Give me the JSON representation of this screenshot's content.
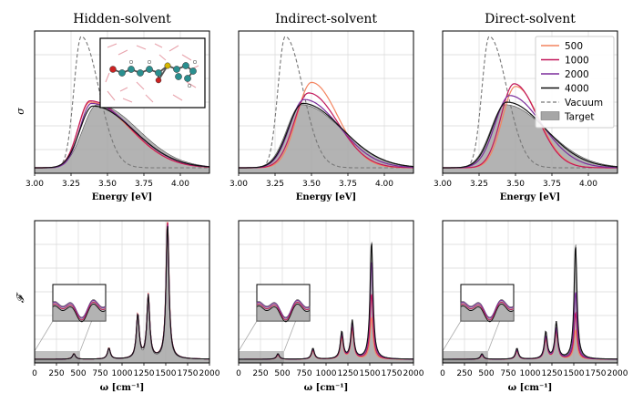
{
  "colors": {
    "s500": "#f4845f",
    "s1000": "#c2185b",
    "s2000": "#7b2d9c",
    "s4000": "#111111",
    "vacuum": "#777777",
    "target": "#a6a6a6"
  },
  "legend": {
    "items": [
      {
        "label": "500",
        "key": "s500"
      },
      {
        "label": "1000",
        "key": "s1000"
      },
      {
        "label": "2000",
        "key": "s2000"
      },
      {
        "label": "4000",
        "key": "s4000"
      },
      {
        "label": "Vacuum",
        "key": "vacuum"
      },
      {
        "label": "Target",
        "key": "target"
      }
    ]
  },
  "inset_image": {
    "description_icon": "molecule-icon"
  },
  "chart_data": [
    {
      "type": "line",
      "panel": "top-left",
      "title": "Hidden-solvent",
      "xlabel": "Energy [eV]",
      "ylabel": "σ",
      "xlim": [
        3.0,
        4.2
      ],
      "xticks": [
        "3.00",
        "3.25",
        "3.50",
        "3.75",
        "4.00"
      ],
      "series": [
        {
          "name": "Target",
          "peak": 0.48,
          "center": 3.43,
          "width_left": 0.1,
          "width_right": 0.28
        },
        {
          "name": "Vacuum",
          "peak": 1.0,
          "center": 3.32,
          "width_left": 0.05,
          "width_right": 0.12
        },
        {
          "name": "500",
          "peak": 0.5,
          "center": 3.38,
          "width_left": 0.08,
          "width_right": 0.27
        },
        {
          "name": "1000",
          "peak": 0.51,
          "center": 3.38,
          "width_left": 0.08,
          "width_right": 0.27
        },
        {
          "name": "2000",
          "peak": 0.49,
          "center": 3.39,
          "width_left": 0.08,
          "width_right": 0.28
        },
        {
          "name": "4000",
          "peak": 0.47,
          "center": 3.4,
          "width_left": 0.09,
          "width_right": 0.28
        }
      ]
    },
    {
      "type": "line",
      "panel": "top-middle",
      "title": "Indirect-solvent",
      "xlabel": "Energy [eV]",
      "ylabel": "",
      "xlim": [
        3.0,
        4.2
      ],
      "xticks": [
        "3.00",
        "3.25",
        "3.50",
        "3.75",
        "4.00"
      ],
      "series": [
        {
          "name": "Target",
          "peak": 0.48,
          "center": 3.43,
          "width_left": 0.1,
          "width_right": 0.28
        },
        {
          "name": "Vacuum",
          "peak": 1.0,
          "center": 3.32,
          "width_left": 0.05,
          "width_right": 0.12
        },
        {
          "name": "500",
          "peak": 0.65,
          "center": 3.5,
          "width_left": 0.1,
          "width_right": 0.18
        },
        {
          "name": "1000",
          "peak": 0.57,
          "center": 3.48,
          "width_left": 0.1,
          "width_right": 0.2
        },
        {
          "name": "2000",
          "peak": 0.52,
          "center": 3.45,
          "width_left": 0.1,
          "width_right": 0.24
        },
        {
          "name": "4000",
          "peak": 0.49,
          "center": 3.44,
          "width_left": 0.1,
          "width_right": 0.27
        }
      ]
    },
    {
      "type": "line",
      "panel": "top-right",
      "title": "Direct-solvent",
      "xlabel": "Energy [eV]",
      "ylabel": "",
      "xlim": [
        3.0,
        4.2
      ],
      "xticks": [
        "3.00",
        "3.25",
        "3.50",
        "3.75",
        "4.00"
      ],
      "series": [
        {
          "name": "Target",
          "peak": 0.48,
          "center": 3.43,
          "width_left": 0.1,
          "width_right": 0.28
        },
        {
          "name": "Vacuum",
          "peak": 1.0,
          "center": 3.32,
          "width_left": 0.05,
          "width_right": 0.12
        },
        {
          "name": "500",
          "peak": 0.62,
          "center": 3.5,
          "width_left": 0.09,
          "width_right": 0.16
        },
        {
          "name": "1000",
          "peak": 0.64,
          "center": 3.49,
          "width_left": 0.09,
          "width_right": 0.16
        },
        {
          "name": "2000",
          "peak": 0.55,
          "center": 3.46,
          "width_left": 0.1,
          "width_right": 0.22
        },
        {
          "name": "4000",
          "peak": 0.5,
          "center": 3.44,
          "width_left": 0.1,
          "width_right": 0.26
        }
      ]
    },
    {
      "type": "line",
      "panel": "bottom-left",
      "xlabel": "ω [cm⁻¹]",
      "ylabel": "𝓕",
      "xlim": [
        0,
        2000
      ],
      "xticks": [
        "0",
        "250",
        "500",
        "750",
        "1000",
        "1250",
        "1500",
        "1750",
        "2000"
      ],
      "peaks_target": [
        [
          450,
          0.04
        ],
        [
          850,
          0.08
        ],
        [
          1180,
          0.32
        ],
        [
          1300,
          0.46
        ],
        [
          1520,
          1.0
        ]
      ],
      "series": [
        {
          "name": "500",
          "scale": 1.05
        },
        {
          "name": "1000",
          "scale": 1.02
        },
        {
          "name": "2000",
          "scale": 1.0
        },
        {
          "name": "4000",
          "scale": 0.99
        }
      ]
    },
    {
      "type": "line",
      "panel": "bottom-middle",
      "xlabel": "ω [cm⁻¹]",
      "ylabel": "",
      "xlim": [
        0,
        2000
      ],
      "xticks": [
        "0",
        "250",
        "500",
        "750",
        "1000",
        "1250",
        "1500",
        "1750",
        "2000"
      ],
      "peaks_target": [
        [
          450,
          0.04
        ],
        [
          850,
          0.08
        ],
        [
          1180,
          0.2
        ],
        [
          1300,
          0.28
        ],
        [
          1520,
          0.88
        ]
      ],
      "series": [
        {
          "name": "500",
          "scale": 0.35
        },
        {
          "name": "1000",
          "scale": 0.55
        },
        {
          "name": "2000",
          "scale": 0.82
        },
        {
          "name": "4000",
          "scale": 0.98
        }
      ]
    },
    {
      "type": "line",
      "panel": "bottom-right",
      "xlabel": "ω [cm⁻¹]",
      "ylabel": "",
      "xlim": [
        0,
        2000
      ],
      "xticks": [
        "0",
        "250",
        "500",
        "750",
        "1000",
        "1250",
        "1500",
        "1750",
        "2000"
      ],
      "peaks_target": [
        [
          450,
          0.04
        ],
        [
          850,
          0.08
        ],
        [
          1180,
          0.2
        ],
        [
          1300,
          0.27
        ],
        [
          1520,
          0.86
        ]
      ],
      "series": [
        {
          "name": "500",
          "scale": 0.25
        },
        {
          "name": "1000",
          "scale": 0.4
        },
        {
          "name": "2000",
          "scale": 0.58
        },
        {
          "name": "4000",
          "scale": 0.97
        }
      ]
    }
  ]
}
